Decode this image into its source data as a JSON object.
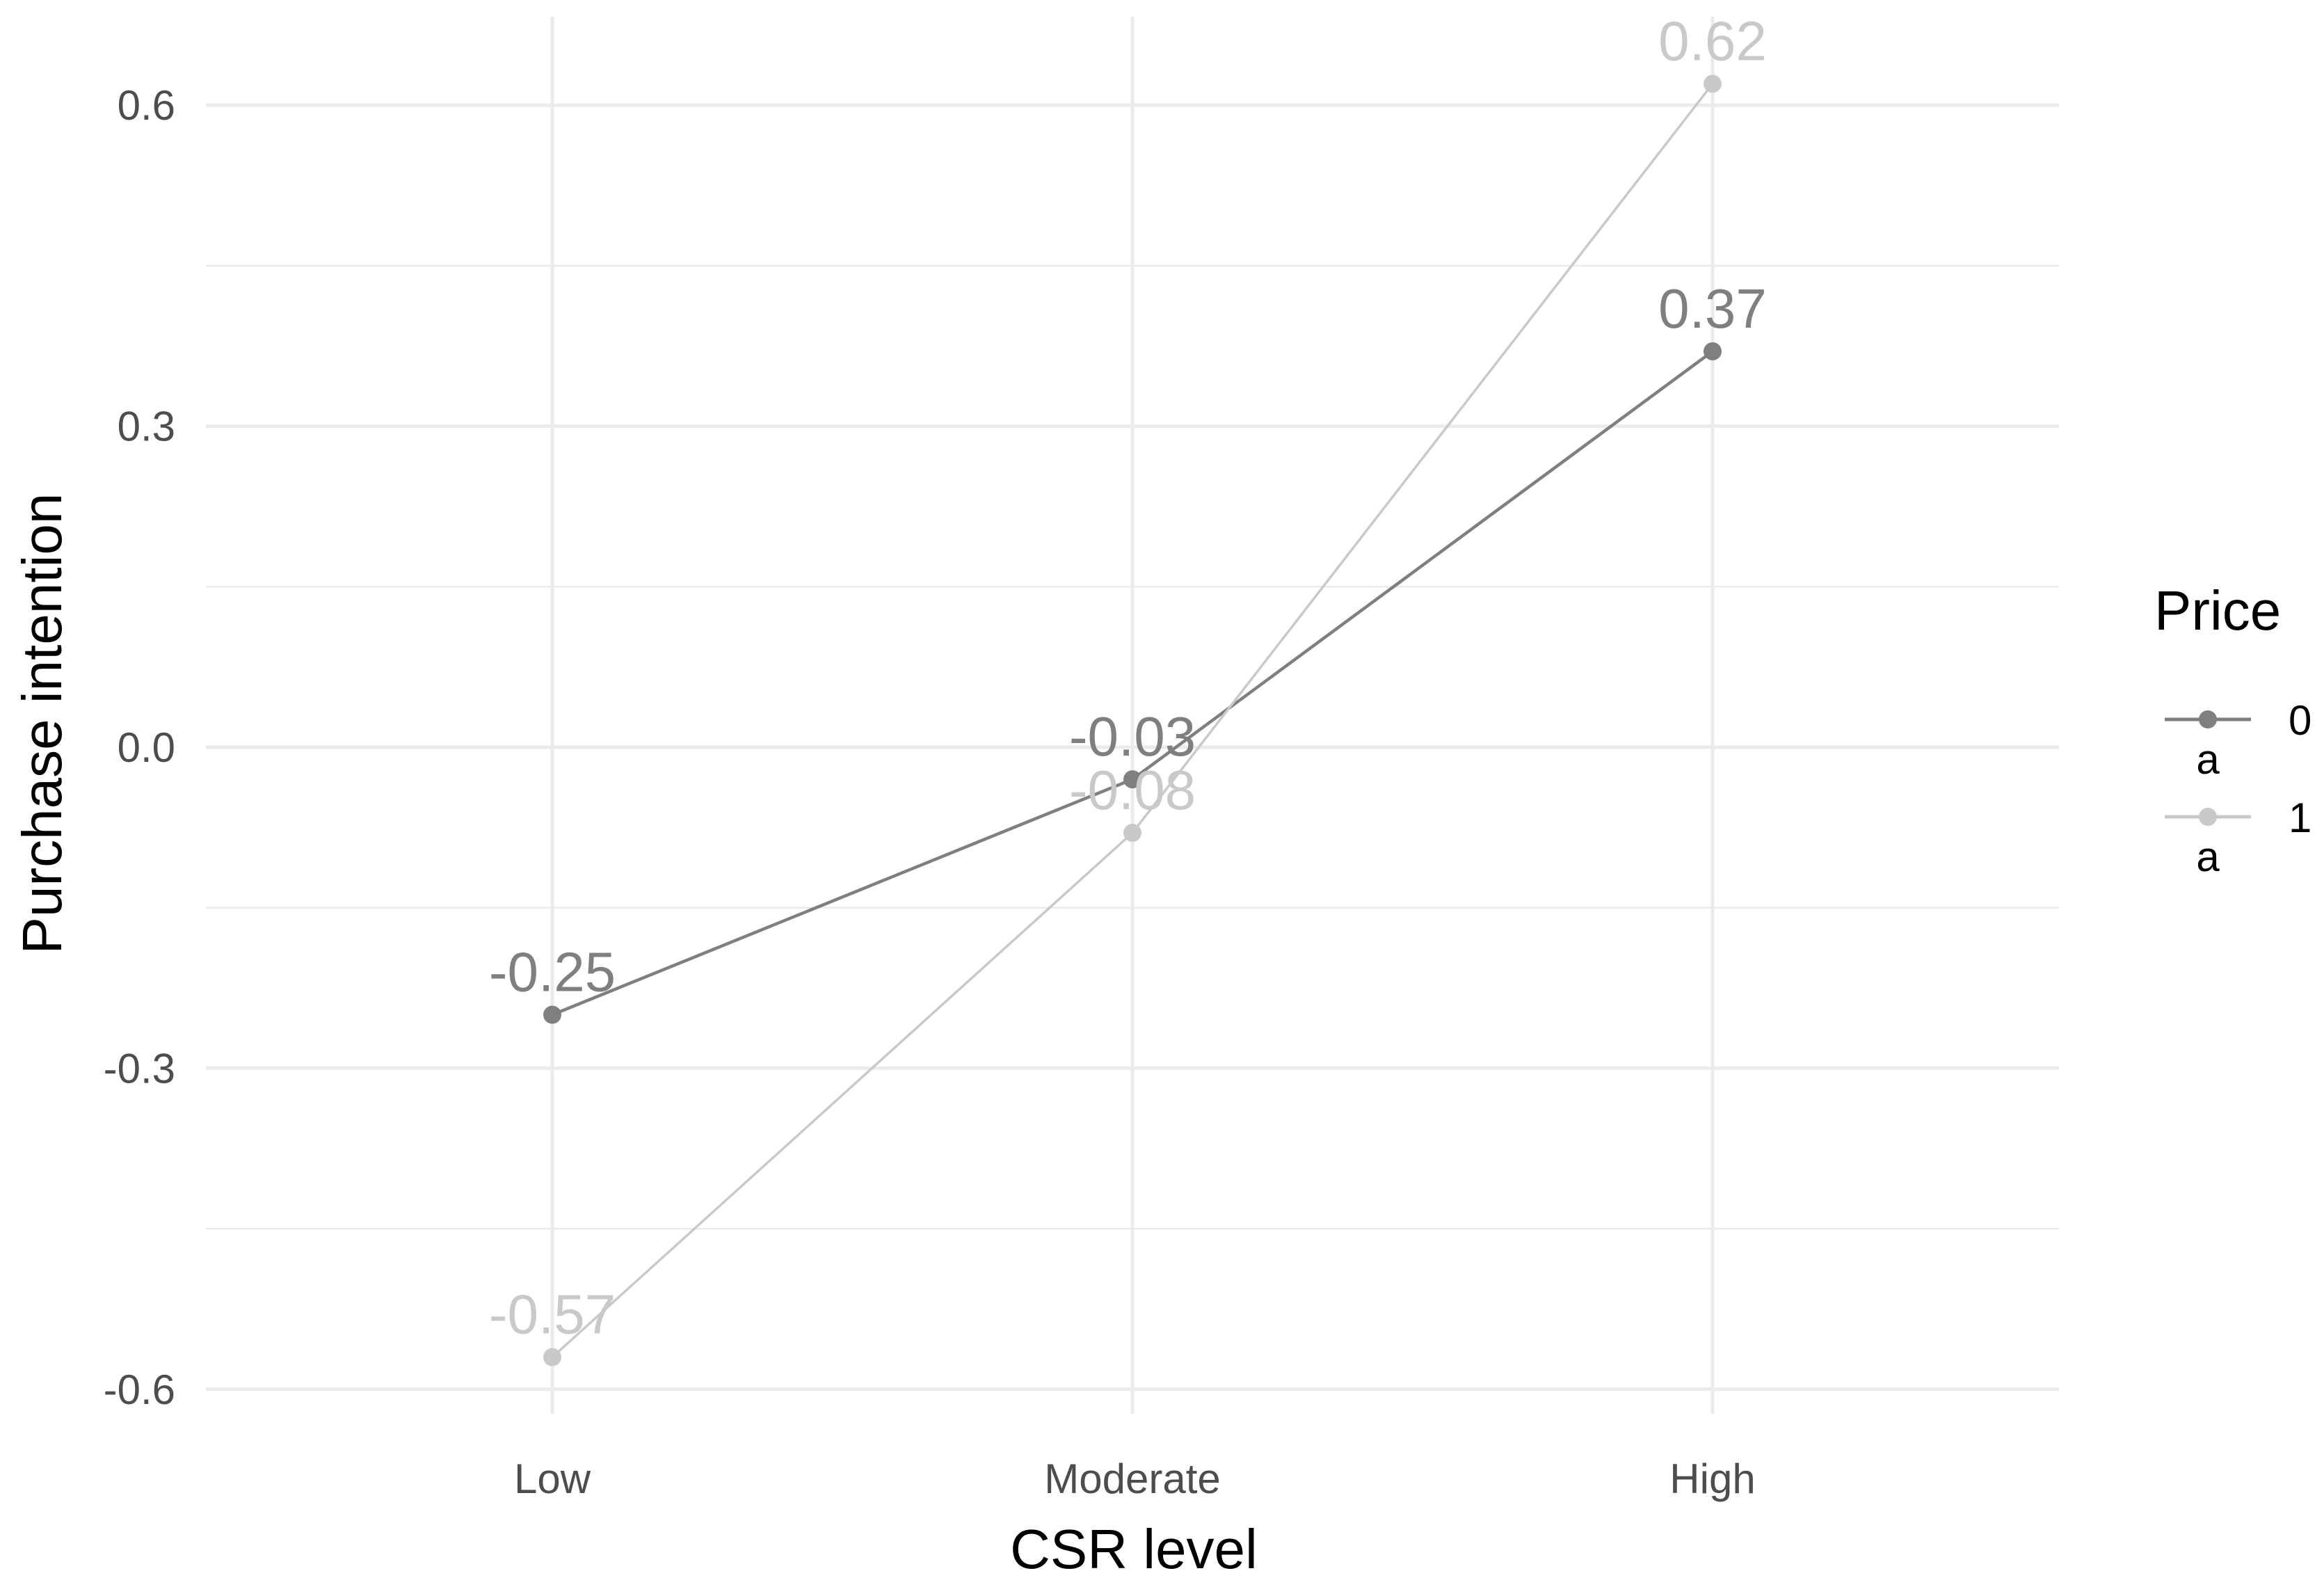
{
  "chart_data": {
    "type": "line",
    "categories": [
      "Low",
      "Moderate",
      "High"
    ],
    "xlabel": "CSR level",
    "ylabel": "Purchase intention",
    "ylim": [
      -0.63,
      0.68
    ],
    "yticks": [
      -0.6,
      -0.3,
      0.0,
      0.3,
      0.6
    ],
    "ytick_labels": [
      "-0.6",
      "-0.3",
      "0.0",
      "0.3",
      "0.6"
    ],
    "grid": true,
    "legend": {
      "title": "Price",
      "placement": "right",
      "glyph_text": "a"
    },
    "series": [
      {
        "name": "0",
        "color": "#7f7f7f",
        "values": [
          -0.25,
          -0.03,
          0.37
        ],
        "labels": [
          "-0.25",
          "-0.03",
          "0.37"
        ]
      },
      {
        "name": "1",
        "color": "#c9c9c9",
        "values": [
          -0.57,
          -0.08,
          0.62
        ],
        "labels": [
          "-0.57",
          "-0.08",
          "0.62"
        ]
      }
    ]
  }
}
